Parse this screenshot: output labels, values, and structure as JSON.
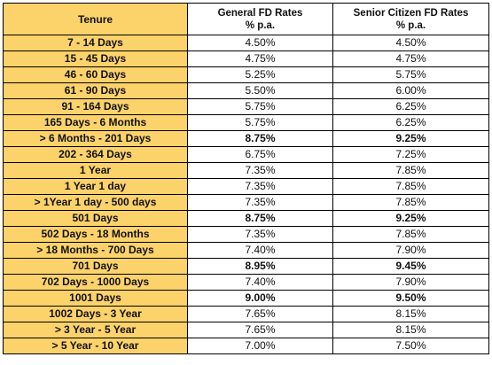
{
  "header": {
    "tenure": "Tenure",
    "general": "General FD Rates",
    "general_unit": "% p.a.",
    "senior": "Senior Citizen FD Rates",
    "senior_unit": "% p.a."
  },
  "rows": [
    {
      "tenure": "7 - 14 Days",
      "general": "4.50%",
      "senior": "4.50%",
      "bold": false
    },
    {
      "tenure": "15 - 45 Days",
      "general": "4.75%",
      "senior": "4.75%",
      "bold": false
    },
    {
      "tenure": "46 - 60 Days",
      "general": "5.25%",
      "senior": "5.75%",
      "bold": false
    },
    {
      "tenure": "61 - 90 Days",
      "general": "5.50%",
      "senior": "6.00%",
      "bold": false
    },
    {
      "tenure": "91 - 164 Days",
      "general": "5.75%",
      "senior": "6.25%",
      "bold": false
    },
    {
      "tenure": "165 Days - 6 Months",
      "general": "5.75%",
      "senior": "6.25%",
      "bold": false
    },
    {
      "tenure": "> 6 Months - 201 Days",
      "general": "8.75%",
      "senior": "9.25%",
      "bold": true
    },
    {
      "tenure": "202 - 364 Days",
      "general": "6.75%",
      "senior": "7.25%",
      "bold": false
    },
    {
      "tenure": "1 Year",
      "general": "7.35%",
      "senior": "7.85%",
      "bold": false
    },
    {
      "tenure": "1 Year 1 day",
      "general": "7.35%",
      "senior": "7.85%",
      "bold": false
    },
    {
      "tenure": "> 1Year 1 day - 500 days",
      "general": "7.35%",
      "senior": "7.85%",
      "bold": false
    },
    {
      "tenure": "501 Days",
      "general": "8.75%",
      "senior": "9.25%",
      "bold": true
    },
    {
      "tenure": "502 Days - 18 Months",
      "general": "7.35%",
      "senior": "7.85%",
      "bold": false
    },
    {
      "tenure": "> 18 Months - 700 Days",
      "general": "7.40%",
      "senior": "7.90%",
      "bold": false
    },
    {
      "tenure": "701 Days",
      "general": "8.95%",
      "senior": "9.45%",
      "bold": true
    },
    {
      "tenure": "702 Days - 1000 Days",
      "general": "7.40%",
      "senior": "7.90%",
      "bold": false
    },
    {
      "tenure": "1001 Days",
      "general": "9.00%",
      "senior": "9.50%",
      "bold": true
    },
    {
      "tenure": "1002 Days - 3 Year",
      "general": "7.65%",
      "senior": "8.15%",
      "bold": false
    },
    {
      "tenure": "> 3 Year - 5 Year",
      "general": "7.65%",
      "senior": "8.15%",
      "bold": false
    },
    {
      "tenure": "> 5 Year - 10 Year",
      "general": "7.00%",
      "senior": "7.50%",
      "bold": false
    }
  ],
  "colors": {
    "tenure_fill": "#fcd26b",
    "border": "#000000"
  }
}
